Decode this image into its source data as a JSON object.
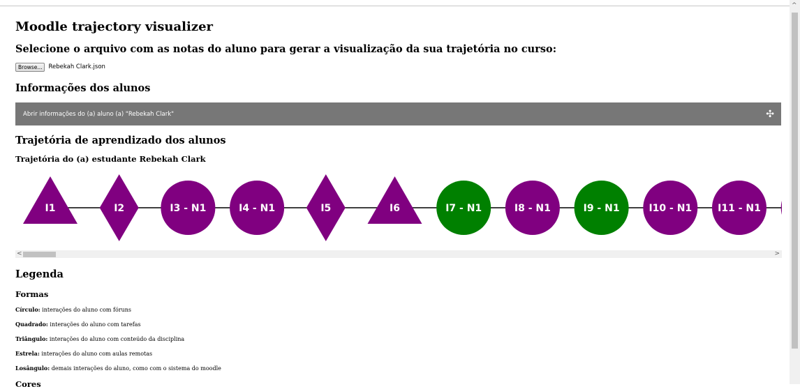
{
  "page": {
    "title": "Moodle trajectory visualizer",
    "instruction": "Selecione o arquivo com as notas do aluno para gerar a visualização da sua trajetória no curso:"
  },
  "file_input": {
    "button_label": "Browse...",
    "file_name": "Rebekah Clark.json"
  },
  "students_info": {
    "heading": "Informações dos alunos",
    "accordion_label": "Abrir informações do (a) aluno (a) \"Rebekah Clark\"",
    "accordion_icon": "plus-icon"
  },
  "trajectory": {
    "heading": "Trajetória de aprendizado dos alunos",
    "student_heading": "Trajetória do (a) estudante Rebekah Clark",
    "colors": {
      "purple": "#800080",
      "green": "#008000"
    },
    "nodes": [
      {
        "label": "I1",
        "shape": "triangle",
        "color": "#800080"
      },
      {
        "label": "I2",
        "shape": "diamond",
        "color": "#800080"
      },
      {
        "label": "I3 - N1",
        "shape": "circle",
        "color": "#800080"
      },
      {
        "label": "I4 - N1",
        "shape": "circle",
        "color": "#800080"
      },
      {
        "label": "I5",
        "shape": "diamond",
        "color": "#800080"
      },
      {
        "label": "I6",
        "shape": "triangle",
        "color": "#800080"
      },
      {
        "label": "I7 - N1",
        "shape": "circle",
        "color": "#008000"
      },
      {
        "label": "I8 - N1",
        "shape": "circle",
        "color": "#800080"
      },
      {
        "label": "I9 - N1",
        "shape": "circle",
        "color": "#008000"
      },
      {
        "label": "I10 - N1",
        "shape": "circle",
        "color": "#800080"
      },
      {
        "label": "I11 - N1",
        "shape": "circle",
        "color": "#800080"
      },
      {
        "label": "",
        "shape": "circle",
        "color": "#800080"
      }
    ]
  },
  "legend": {
    "heading": "Legenda",
    "shapes_heading": "Formas",
    "items": [
      {
        "term": "Círculo:",
        "desc": " interações do aluno com fóruns"
      },
      {
        "term": "Quadrado:",
        "desc": " interações do aluno com tarefas"
      },
      {
        "term": "Triângulo:",
        "desc": " interações do aluno com conteúdo da disciplina"
      },
      {
        "term": "Estrela:",
        "desc": " interações do aluno com aulas remotas"
      },
      {
        "term": "Losângulo:",
        "desc": " demais interações do aluno, como com o sistema do moodle"
      }
    ],
    "colors_heading": "Cores"
  }
}
